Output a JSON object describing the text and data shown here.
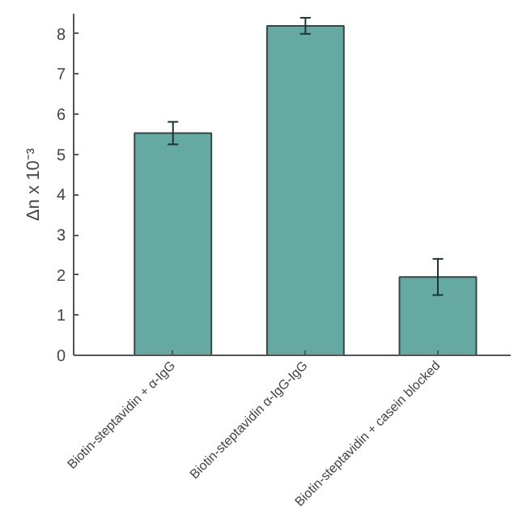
{
  "chart_data": {
    "type": "bar",
    "ylabel": "Δn x 10⁻³",
    "categories": [
      "Biotin-steptavidin + α-IgG",
      "Biotin-steptavidin α-IgG-IgG",
      "Biotin-steptavidin + casein blocked"
    ],
    "values": [
      5.53,
      8.2,
      1.95
    ],
    "errors": [
      0.28,
      0.2,
      0.45
    ],
    "color": "#66a8a2",
    "ylim": [
      0,
      8.5
    ],
    "yticks": [
      0,
      1,
      2,
      3,
      4,
      5,
      6,
      7,
      8
    ],
    "grid": false
  }
}
